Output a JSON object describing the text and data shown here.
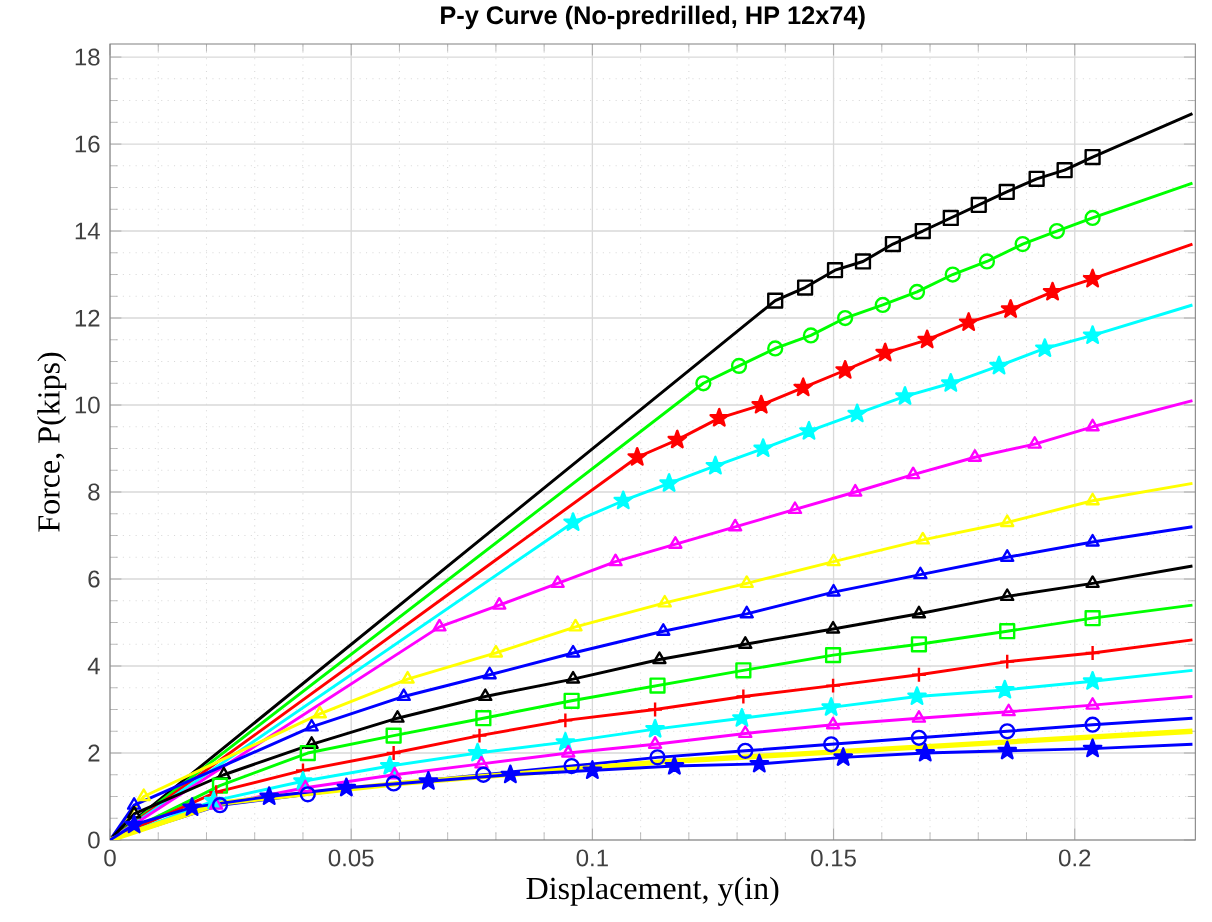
{
  "chart_data": {
    "type": "line",
    "title": "P-y Curve (No-predrilled, HP 12x74)",
    "xlabel": "Displacement, y(in)",
    "ylabel": "Force, P(kips)",
    "xlim": [
      0,
      0.225
    ],
    "ylim": [
      0,
      18.3
    ],
    "xticks": [
      0,
      0.05,
      0.1,
      0.15,
      0.2
    ],
    "yticks": [
      0,
      2,
      4,
      6,
      8,
      10,
      12,
      14,
      16,
      18
    ],
    "grid": true,
    "series": [
      {
        "color": "#000000",
        "marker": "square",
        "x": [
          0,
          0.1379,
          0.1441,
          0.1503,
          0.1561,
          0.1623,
          0.1685,
          0.1743,
          0.1801,
          0.1859,
          0.1921,
          0.1979,
          0.2037,
          0.2244
        ],
        "values": [
          0,
          12.4,
          12.7,
          13.1,
          13.3,
          13.7,
          14.0,
          14.3,
          14.6,
          14.9,
          15.2,
          15.4,
          15.7,
          16.7
        ]
      },
      {
        "color": "#00ff00",
        "marker": "circle",
        "x": [
          0,
          0.123,
          0.1304,
          0.1379,
          0.1453,
          0.1524,
          0.1602,
          0.1673,
          0.1747,
          0.1818,
          0.1892,
          0.1963,
          0.2037,
          0.2244
        ],
        "values": [
          0,
          10.5,
          10.9,
          11.3,
          11.6,
          12.0,
          12.3,
          12.6,
          13.0,
          13.3,
          13.7,
          14.0,
          14.3,
          15.1
        ]
      },
      {
        "color": "#ff0000",
        "marker": "star",
        "x": [
          0,
          0.1093,
          0.1176,
          0.1263,
          0.135,
          0.1437,
          0.1524,
          0.1607,
          0.1694,
          0.178,
          0.1867,
          0.1954,
          0.2037,
          0.2244
        ],
        "values": [
          0,
          8.8,
          9.2,
          9.7,
          10.0,
          10.4,
          10.8,
          11.2,
          11.5,
          11.9,
          12.2,
          12.6,
          12.9,
          13.7
        ]
      },
      {
        "color": "#00ffff",
        "marker": "star",
        "x": [
          0,
          0.096,
          0.1064,
          0.1159,
          0.1255,
          0.1354,
          0.1449,
          0.1549,
          0.1648,
          0.1743,
          0.1843,
          0.1938,
          0.2037,
          0.2244
        ],
        "values": [
          0,
          7.3,
          7.8,
          8.2,
          8.6,
          9.0,
          9.4,
          9.8,
          10.2,
          10.5,
          10.9,
          11.3,
          11.6,
          12.3
        ]
      },
      {
        "color": "#ff00ff",
        "marker": "triangle",
        "x": [
          0,
          0.0683,
          0.0807,
          0.0928,
          0.1048,
          0.1172,
          0.1296,
          0.142,
          0.1545,
          0.1665,
          0.1793,
          0.1917,
          0.2037,
          0.2244
        ],
        "values": [
          0,
          4.9,
          5.4,
          5.9,
          6.4,
          6.8,
          7.2,
          7.6,
          8.0,
          8.4,
          8.8,
          9.1,
          9.5,
          10.1
        ]
      },
      {
        "color": "#ffff00",
        "marker": "triangle",
        "x": [
          0,
          0.007,
          0.0435,
          0.0617,
          0.08,
          0.0965,
          0.115,
          0.132,
          0.15,
          0.1685,
          0.186,
          0.2037,
          0.2244
        ],
        "values": [
          0,
          1.0,
          2.9,
          3.7,
          4.3,
          4.9,
          5.45,
          5.9,
          6.4,
          6.9,
          7.3,
          7.8,
          8.2
        ]
      },
      {
        "color": "#0000ff",
        "marker": "triangle",
        "x": [
          0,
          0.005,
          0.0418,
          0.0609,
          0.0787,
          0.096,
          0.1147,
          0.132,
          0.15,
          0.168,
          0.186,
          0.2037,
          0.2244
        ],
        "values": [
          0,
          0.8,
          2.6,
          3.3,
          3.8,
          4.3,
          4.8,
          5.2,
          5.7,
          6.1,
          6.5,
          6.85,
          7.2
        ]
      },
      {
        "color": "#000000",
        "marker": "triangle",
        "x": [
          0,
          0.005,
          0.0236,
          0.0418,
          0.0596,
          0.0778,
          0.096,
          0.1139,
          0.1317,
          0.1499,
          0.1677,
          0.186,
          0.2037,
          0.2244
        ],
        "values": [
          0,
          0.6,
          1.5,
          2.2,
          2.8,
          3.3,
          3.7,
          4.15,
          4.5,
          4.85,
          5.2,
          5.6,
          5.9,
          6.3
        ]
      },
      {
        "color": "#00ff00",
        "marker": "square",
        "x": [
          0,
          0.0228,
          0.041,
          0.0588,
          0.0774,
          0.0957,
          0.1135,
          0.1313,
          0.1499,
          0.1677,
          0.186,
          0.2037,
          0.2244
        ],
        "values": [
          0,
          1.25,
          2.0,
          2.4,
          2.8,
          3.2,
          3.55,
          3.9,
          4.25,
          4.5,
          4.8,
          5.1,
          5.4
        ]
      },
      {
        "color": "#ff0000",
        "marker": "cross",
        "x": [
          0,
          0.022,
          0.04,
          0.0588,
          0.0766,
          0.0944,
          0.113,
          0.1313,
          0.1499,
          0.1677,
          0.186,
          0.2037,
          0.2244
        ],
        "values": [
          0,
          1.1,
          1.6,
          2.0,
          2.4,
          2.75,
          3.0,
          3.3,
          3.55,
          3.8,
          4.1,
          4.3,
          4.6
        ]
      },
      {
        "color": "#00ffff",
        "marker": "star",
        "x": [
          0,
          0.0215,
          0.04,
          0.058,
          0.0762,
          0.0944,
          0.113,
          0.131,
          0.1495,
          0.1673,
          0.1855,
          0.2037,
          0.2244
        ],
        "values": [
          0,
          0.9,
          1.35,
          1.7,
          2.0,
          2.25,
          2.55,
          2.8,
          3.05,
          3.3,
          3.45,
          3.65,
          3.9
        ]
      },
      {
        "color": "#ff00ff",
        "marker": "triangle",
        "x": [
          0,
          0.022,
          0.0405,
          0.059,
          0.077,
          0.095,
          0.113,
          0.1317,
          0.1499,
          0.1677,
          0.1863,
          0.2037,
          0.2244
        ],
        "values": [
          0,
          0.8,
          1.2,
          1.5,
          1.75,
          2.0,
          2.2,
          2.45,
          2.65,
          2.8,
          2.95,
          3.1,
          3.3
        ]
      },
      {
        "color": "#0000ff",
        "marker": "circle",
        "x": [
          0,
          0.0228,
          0.041,
          0.0588,
          0.0774,
          0.0957,
          0.1135,
          0.1317,
          0.1495,
          0.1677,
          0.186,
          0.2037,
          0.2244
        ],
        "values": [
          0,
          0.8,
          1.05,
          1.3,
          1.5,
          1.7,
          1.9,
          2.05,
          2.2,
          2.35,
          2.5,
          2.65,
          2.8
        ]
      },
      {
        "color": "#ffff00",
        "marker": "none",
        "x": [
          0,
          0.023,
          0.06,
          0.115,
          0.2244
        ],
        "values": [
          0,
          0.85,
          1.3,
          1.8,
          2.5
        ]
      },
      {
        "color": "#0000ff",
        "marker": "star",
        "x": [
          0,
          0.005,
          0.017,
          0.033,
          0.049,
          0.066,
          0.083,
          0.1,
          0.117,
          0.1346,
          0.152,
          0.169,
          0.186,
          0.2037,
          0.2244
        ],
        "values": [
          0,
          0.35,
          0.75,
          1.0,
          1.2,
          1.35,
          1.5,
          1.6,
          1.7,
          1.75,
          1.9,
          2.0,
          2.05,
          2.1,
          2.2
        ]
      }
    ]
  }
}
